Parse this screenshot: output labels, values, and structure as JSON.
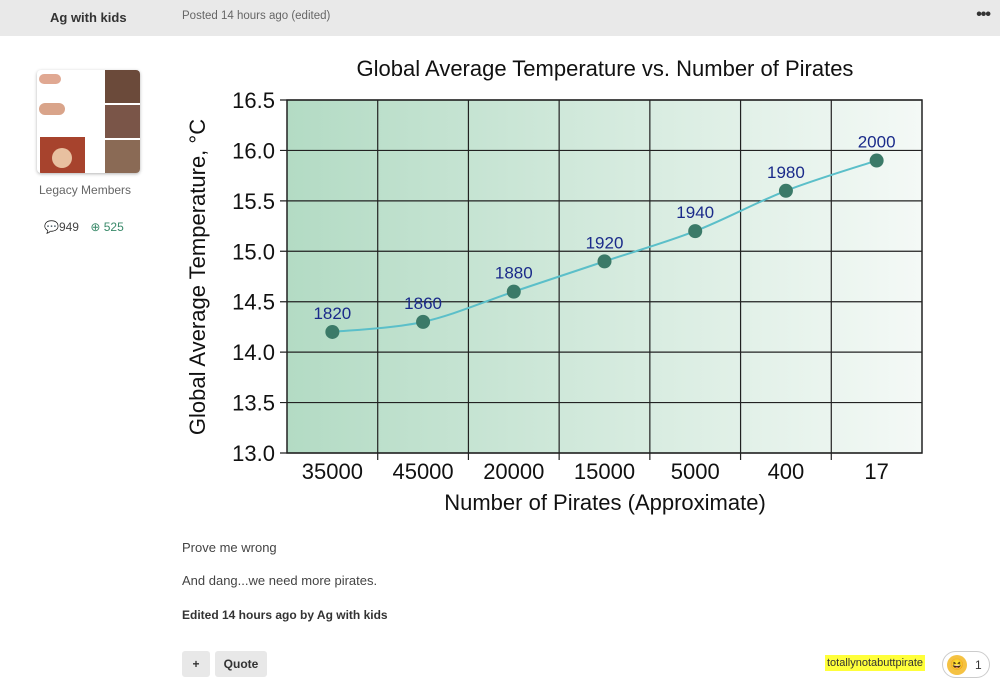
{
  "post": {
    "author": "Ag with kids",
    "posted": "Posted 14 hours ago (edited)",
    "more_icon": "ellipsis-icon",
    "group": "Legacy Members",
    "comments": "949",
    "reputation": "525",
    "body": [
      "Prove me wrong",
      "And dang...we need more pirates."
    ],
    "edited": "Edited 14 hours ago by Ag with kids",
    "add_label": "+",
    "quote_label": "Quote",
    "reaction": {
      "user": "totallynotabuttpirate",
      "count": "1",
      "emoji": "laughing-emoji"
    }
  },
  "chart_data": {
    "type": "line",
    "title": "Global Average Temperature vs. Number of Pirates",
    "xlabel": "Number of Pirates (Approximate)",
    "ylabel": "Global Average Temperature, °C",
    "categories": [
      "35000",
      "45000",
      "20000",
      "15000",
      "5000",
      "400",
      "17"
    ],
    "point_labels": [
      "1820",
      "1860",
      "1880",
      "1920",
      "1940",
      "1980",
      "2000"
    ],
    "values": [
      14.2,
      14.3,
      14.6,
      14.9,
      15.2,
      15.6,
      15.9
    ],
    "yticks": [
      "13.0",
      "13.5",
      "14.0",
      "14.5",
      "15.0",
      "15.5",
      "16.0",
      "16.5"
    ],
    "ylim": [
      13.0,
      16.5
    ],
    "grid": true,
    "colors": {
      "line": "#5bbfc9",
      "marker": "#3b7a68",
      "label": "#1a2a8a",
      "bg_start": "#b3dbc4",
      "bg_end": "#f4f9f6"
    }
  }
}
